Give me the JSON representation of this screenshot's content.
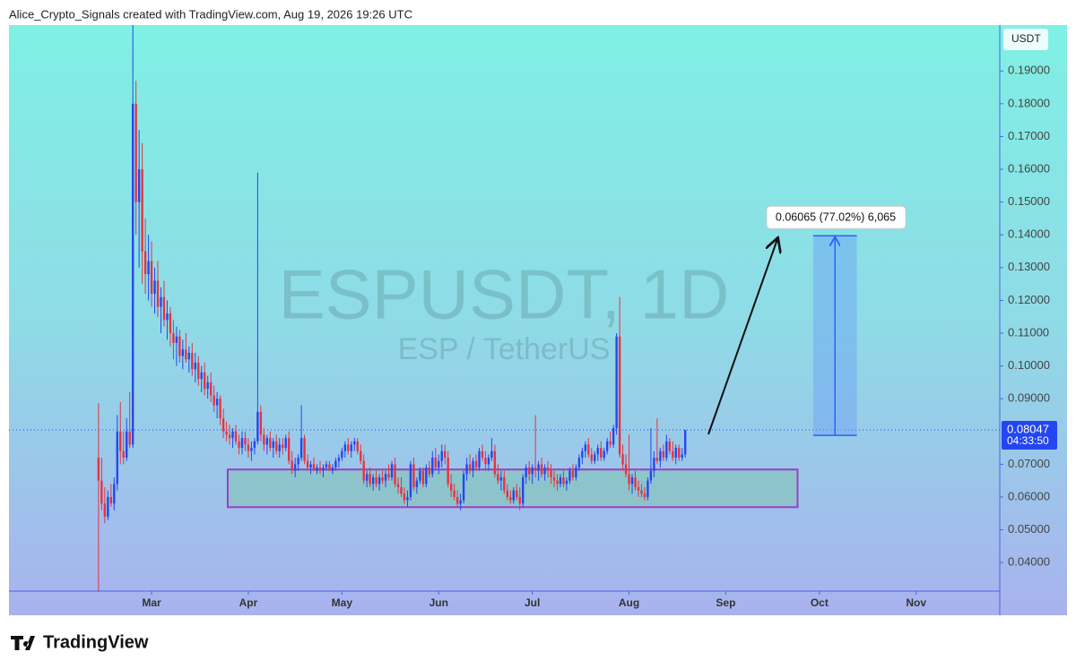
{
  "chart_data": {
    "type": "candlestick",
    "title": "Alice_Crypto_Signals created with TradingView.com, Aug 19, 2026 19:26 UTC",
    "watermark": "ESPUSDT, 1D",
    "watermark_subtitle": "ESP / TetherUS",
    "currency": "USDT",
    "footer": "TradingView",
    "up_color": "#2446f0",
    "down_color": "#e8323f",
    "last_price": 0.08047,
    "countdown": "04:33:50",
    "xlim": [
      -28.7,
      288.8
    ],
    "xticks": [
      {
        "value": 17,
        "label": "Mar"
      },
      {
        "value": 48,
        "label": "Apr"
      },
      {
        "value": 78,
        "label": "May"
      },
      {
        "value": 109,
        "label": "Jun"
      },
      {
        "value": 139,
        "label": "Jul"
      },
      {
        "value": 170,
        "label": "Aug"
      },
      {
        "value": 201,
        "label": "Sep"
      },
      {
        "value": 231,
        "label": "Oct"
      },
      {
        "value": 262,
        "label": "Nov"
      }
    ],
    "ylim": [
      0.0313,
      0.204
    ],
    "yticks": [
      {
        "value": 0.04,
        "label": "0.04000"
      },
      {
        "value": 0.05,
        "label": "0.05000"
      },
      {
        "value": 0.06,
        "label": "0.06000"
      },
      {
        "value": 0.07,
        "label": "0.07000"
      },
      {
        "value": 0.09,
        "label": "0.09000"
      },
      {
        "value": 0.1,
        "label": "0.10000"
      },
      {
        "value": 0.11,
        "label": "0.11000"
      },
      {
        "value": 0.12,
        "label": "0.12000"
      },
      {
        "value": 0.13,
        "label": "0.13000"
      },
      {
        "value": 0.14,
        "label": "0.14000"
      },
      {
        "value": 0.15,
        "label": "0.15000"
      },
      {
        "value": 0.16,
        "label": "0.16000"
      },
      {
        "value": 0.17,
        "label": "0.17000"
      },
      {
        "value": 0.18,
        "label": "0.18000"
      },
      {
        "value": 0.19,
        "label": "0.19000"
      }
    ],
    "zone": {
      "x": [
        41.4,
        224
      ],
      "y": [
        0.0569,
        0.0684
      ]
    },
    "measure": {
      "x": [
        229,
        243
      ],
      "y": [
        0.0788,
        0.1397
      ],
      "label": "0.06065 (77.02%) 6,065"
    },
    "candles": [
      [
        0.072,
        0.0886,
        0.031,
        0.065
      ],
      [
        0.065,
        0.072,
        0.056,
        0.058
      ],
      [
        0.058,
        0.063,
        0.052,
        0.054
      ],
      [
        0.054,
        0.062,
        0.053,
        0.06
      ],
      [
        0.06,
        0.064,
        0.057,
        0.058
      ],
      [
        0.058,
        0.066,
        0.056,
        0.064
      ],
      [
        0.064,
        0.085,
        0.062,
        0.08
      ],
      [
        0.08,
        0.089,
        0.07,
        0.074
      ],
      [
        0.074,
        0.08,
        0.07,
        0.072
      ],
      [
        0.072,
        0.084,
        0.071,
        0.08
      ],
      [
        0.08,
        0.092,
        0.075,
        0.076
      ],
      [
        0.076,
        0.204,
        0.075,
        0.18
      ],
      [
        0.18,
        0.187,
        0.14,
        0.15
      ],
      [
        0.15,
        0.172,
        0.13,
        0.16
      ],
      [
        0.16,
        0.168,
        0.125,
        0.135
      ],
      [
        0.135,
        0.145,
        0.122,
        0.128
      ],
      [
        0.128,
        0.14,
        0.12,
        0.132
      ],
      [
        0.132,
        0.138,
        0.118,
        0.122
      ],
      [
        0.122,
        0.13,
        0.116,
        0.126
      ],
      [
        0.126,
        0.132,
        0.115,
        0.118
      ],
      [
        0.118,
        0.124,
        0.11,
        0.121
      ],
      [
        0.121,
        0.126,
        0.112,
        0.114
      ],
      [
        0.114,
        0.12,
        0.108,
        0.116
      ],
      [
        0.116,
        0.118,
        0.106,
        0.11
      ],
      [
        0.11,
        0.114,
        0.102,
        0.107
      ],
      [
        0.107,
        0.112,
        0.1,
        0.109
      ],
      [
        0.109,
        0.111,
        0.101,
        0.103
      ],
      [
        0.103,
        0.108,
        0.099,
        0.105
      ],
      [
        0.105,
        0.11,
        0.101,
        0.102
      ],
      [
        0.102,
        0.106,
        0.098,
        0.104
      ],
      [
        0.104,
        0.107,
        0.097,
        0.099
      ],
      [
        0.099,
        0.104,
        0.095,
        0.101
      ],
      [
        0.101,
        0.103,
        0.094,
        0.096
      ],
      [
        0.096,
        0.1,
        0.092,
        0.098
      ],
      [
        0.098,
        0.101,
        0.091,
        0.093
      ],
      [
        0.093,
        0.097,
        0.09,
        0.095
      ],
      [
        0.095,
        0.098,
        0.089,
        0.091
      ],
      [
        0.091,
        0.094,
        0.086,
        0.088
      ],
      [
        0.088,
        0.092,
        0.084,
        0.09
      ],
      [
        0.09,
        0.091,
        0.082,
        0.084
      ],
      [
        0.084,
        0.087,
        0.078,
        0.08
      ],
      [
        0.08,
        0.083,
        0.077,
        0.079
      ],
      [
        0.079,
        0.082,
        0.076,
        0.078
      ],
      [
        0.078,
        0.081,
        0.075,
        0.08
      ],
      [
        0.08,
        0.082,
        0.076,
        0.077
      ],
      [
        0.077,
        0.079,
        0.073,
        0.075
      ],
      [
        0.075,
        0.08,
        0.073,
        0.078
      ],
      [
        0.078,
        0.08,
        0.074,
        0.076
      ],
      [
        0.076,
        0.078,
        0.072,
        0.074
      ],
      [
        0.074,
        0.077,
        0.071,
        0.075
      ],
      [
        0.075,
        0.078,
        0.073,
        0.077
      ],
      [
        0.077,
        0.159,
        0.076,
        0.086
      ],
      [
        0.086,
        0.088,
        0.077,
        0.079
      ],
      [
        0.079,
        0.081,
        0.074,
        0.076
      ],
      [
        0.076,
        0.079,
        0.073,
        0.078
      ],
      [
        0.078,
        0.08,
        0.074,
        0.075
      ],
      [
        0.075,
        0.078,
        0.072,
        0.077
      ],
      [
        0.077,
        0.079,
        0.073,
        0.074
      ],
      [
        0.074,
        0.078,
        0.072,
        0.076
      ],
      [
        0.076,
        0.078,
        0.073,
        0.075
      ],
      [
        0.075,
        0.079,
        0.074,
        0.078
      ],
      [
        0.078,
        0.08,
        0.07,
        0.071
      ],
      [
        0.071,
        0.074,
        0.067,
        0.068
      ],
      [
        0.068,
        0.072,
        0.066,
        0.07
      ],
      [
        0.07,
        0.073,
        0.068,
        0.072
      ],
      [
        0.072,
        0.088,
        0.071,
        0.078
      ],
      [
        0.078,
        0.079,
        0.07,
        0.071
      ],
      [
        0.071,
        0.073,
        0.068,
        0.069
      ],
      [
        0.069,
        0.071,
        0.067,
        0.07
      ],
      [
        0.07,
        0.072,
        0.068,
        0.068
      ],
      [
        0.068,
        0.07,
        0.067,
        0.069
      ],
      [
        0.069,
        0.071,
        0.067,
        0.068
      ],
      [
        0.068,
        0.07,
        0.066,
        0.069
      ],
      [
        0.069,
        0.071,
        0.068,
        0.07
      ],
      [
        0.07,
        0.071,
        0.068,
        0.068
      ],
      [
        0.068,
        0.07,
        0.067,
        0.069
      ],
      [
        0.069,
        0.072,
        0.068,
        0.071
      ],
      [
        0.071,
        0.073,
        0.069,
        0.072
      ],
      [
        0.072,
        0.075,
        0.071,
        0.074
      ],
      [
        0.074,
        0.077,
        0.072,
        0.076
      ],
      [
        0.076,
        0.078,
        0.073,
        0.074
      ],
      [
        0.074,
        0.077,
        0.072,
        0.076
      ],
      [
        0.076,
        0.078,
        0.074,
        0.077
      ],
      [
        0.077,
        0.078,
        0.073,
        0.074
      ],
      [
        0.074,
        0.076,
        0.07,
        0.071
      ],
      [
        0.071,
        0.073,
        0.064,
        0.065
      ],
      [
        0.065,
        0.068,
        0.063,
        0.067
      ],
      [
        0.067,
        0.069,
        0.063,
        0.064
      ],
      [
        0.064,
        0.067,
        0.062,
        0.066
      ],
      [
        0.066,
        0.068,
        0.063,
        0.064
      ],
      [
        0.064,
        0.067,
        0.062,
        0.066
      ],
      [
        0.066,
        0.068,
        0.064,
        0.065
      ],
      [
        0.065,
        0.068,
        0.063,
        0.067
      ],
      [
        0.067,
        0.07,
        0.065,
        0.066
      ],
      [
        0.066,
        0.071,
        0.065,
        0.07
      ],
      [
        0.07,
        0.072,
        0.063,
        0.064
      ],
      [
        0.064,
        0.066,
        0.061,
        0.063
      ],
      [
        0.063,
        0.066,
        0.06,
        0.061
      ],
      [
        0.061,
        0.063,
        0.058,
        0.059
      ],
      [
        0.059,
        0.062,
        0.057,
        0.06
      ],
      [
        0.06,
        0.071,
        0.059,
        0.07
      ],
      [
        0.07,
        0.072,
        0.062,
        0.063
      ],
      [
        0.063,
        0.066,
        0.061,
        0.065
      ],
      [
        0.065,
        0.069,
        0.064,
        0.068
      ],
      [
        0.068,
        0.069,
        0.063,
        0.064
      ],
      [
        0.064,
        0.07,
        0.063,
        0.069
      ],
      [
        0.069,
        0.071,
        0.066,
        0.067
      ],
      [
        0.067,
        0.074,
        0.066,
        0.072
      ],
      [
        0.072,
        0.075,
        0.068,
        0.069
      ],
      [
        0.069,
        0.073,
        0.067,
        0.071
      ],
      [
        0.071,
        0.076,
        0.069,
        0.074
      ],
      [
        0.074,
        0.076,
        0.07,
        0.072
      ],
      [
        0.072,
        0.074,
        0.063,
        0.064
      ],
      [
        0.064,
        0.067,
        0.06,
        0.062
      ],
      [
        0.062,
        0.064,
        0.059,
        0.06
      ],
      [
        0.06,
        0.062,
        0.057,
        0.058
      ],
      [
        0.058,
        0.061,
        0.056,
        0.059
      ],
      [
        0.059,
        0.068,
        0.058,
        0.067
      ],
      [
        0.067,
        0.072,
        0.065,
        0.07
      ],
      [
        0.07,
        0.073,
        0.067,
        0.068
      ],
      [
        0.068,
        0.072,
        0.066,
        0.071
      ],
      [
        0.071,
        0.073,
        0.068,
        0.069
      ],
      [
        0.069,
        0.075,
        0.068,
        0.074
      ],
      [
        0.074,
        0.076,
        0.071,
        0.072
      ],
      [
        0.072,
        0.074,
        0.068,
        0.07
      ],
      [
        0.07,
        0.073,
        0.068,
        0.072
      ],
      [
        0.072,
        0.078,
        0.071,
        0.074
      ],
      [
        0.074,
        0.076,
        0.066,
        0.067
      ],
      [
        0.067,
        0.07,
        0.064,
        0.065
      ],
      [
        0.065,
        0.068,
        0.062,
        0.066
      ],
      [
        0.066,
        0.068,
        0.061,
        0.062
      ],
      [
        0.062,
        0.064,
        0.059,
        0.06
      ],
      [
        0.06,
        0.062,
        0.058,
        0.059
      ],
      [
        0.059,
        0.063,
        0.058,
        0.062
      ],
      [
        0.062,
        0.064,
        0.059,
        0.06
      ],
      [
        0.06,
        0.063,
        0.056,
        0.058
      ],
      [
        0.058,
        0.067,
        0.057,
        0.066
      ],
      [
        0.066,
        0.07,
        0.064,
        0.069
      ],
      [
        0.069,
        0.071,
        0.065,
        0.067
      ],
      [
        0.067,
        0.07,
        0.064,
        0.069
      ],
      [
        0.069,
        0.085,
        0.066,
        0.068
      ],
      [
        0.068,
        0.071,
        0.065,
        0.07
      ],
      [
        0.07,
        0.072,
        0.066,
        0.067
      ],
      [
        0.067,
        0.07,
        0.065,
        0.069
      ],
      [
        0.069,
        0.071,
        0.066,
        0.068
      ],
      [
        0.068,
        0.07,
        0.064,
        0.066
      ],
      [
        0.066,
        0.068,
        0.063,
        0.065
      ],
      [
        0.065,
        0.067,
        0.062,
        0.064
      ],
      [
        0.064,
        0.067,
        0.063,
        0.066
      ],
      [
        0.066,
        0.068,
        0.063,
        0.064
      ],
      [
        0.064,
        0.066,
        0.062,
        0.065
      ],
      [
        0.065,
        0.069,
        0.064,
        0.068
      ],
      [
        0.068,
        0.07,
        0.065,
        0.066
      ],
      [
        0.066,
        0.07,
        0.065,
        0.069
      ],
      [
        0.069,
        0.073,
        0.068,
        0.072
      ],
      [
        0.072,
        0.075,
        0.07,
        0.074
      ],
      [
        0.074,
        0.077,
        0.072,
        0.076
      ],
      [
        0.076,
        0.078,
        0.072,
        0.073
      ],
      [
        0.073,
        0.075,
        0.07,
        0.071
      ],
      [
        0.071,
        0.074,
        0.07,
        0.073
      ],
      [
        0.073,
        0.076,
        0.071,
        0.075
      ],
      [
        0.075,
        0.077,
        0.071,
        0.072
      ],
      [
        0.072,
        0.075,
        0.071,
        0.074
      ],
      [
        0.074,
        0.078,
        0.073,
        0.077
      ],
      [
        0.077,
        0.08,
        0.075,
        0.076
      ],
      [
        0.076,
        0.082,
        0.075,
        0.081
      ],
      [
        0.081,
        0.11,
        0.079,
        0.109
      ],
      [
        0.109,
        0.121,
        0.072,
        0.073
      ],
      [
        0.073,
        0.076,
        0.068,
        0.07
      ],
      [
        0.07,
        0.073,
        0.066,
        0.067
      ],
      [
        0.067,
        0.079,
        0.062,
        0.064
      ],
      [
        0.064,
        0.067,
        0.061,
        0.066
      ],
      [
        0.066,
        0.068,
        0.062,
        0.063
      ],
      [
        0.063,
        0.065,
        0.06,
        0.062
      ],
      [
        0.062,
        0.064,
        0.06,
        0.061
      ],
      [
        0.061,
        0.063,
        0.059,
        0.06
      ],
      [
        0.06,
        0.066,
        0.059,
        0.065
      ],
      [
        0.065,
        0.081,
        0.064,
        0.068
      ],
      [
        0.068,
        0.074,
        0.066,
        0.072
      ],
      [
        0.072,
        0.084,
        0.07,
        0.071
      ],
      [
        0.071,
        0.075,
        0.069,
        0.074
      ],
      [
        0.074,
        0.076,
        0.071,
        0.072
      ],
      [
        0.072,
        0.079,
        0.071,
        0.077
      ],
      [
        0.077,
        0.078,
        0.073,
        0.074
      ],
      [
        0.074,
        0.077,
        0.071,
        0.072
      ],
      [
        0.072,
        0.076,
        0.07,
        0.075
      ],
      [
        0.075,
        0.076,
        0.071,
        0.072
      ],
      [
        0.072,
        0.075,
        0.071,
        0.073
      ],
      [
        0.073,
        0.0805,
        0.072,
        0.08047
      ]
    ]
  }
}
